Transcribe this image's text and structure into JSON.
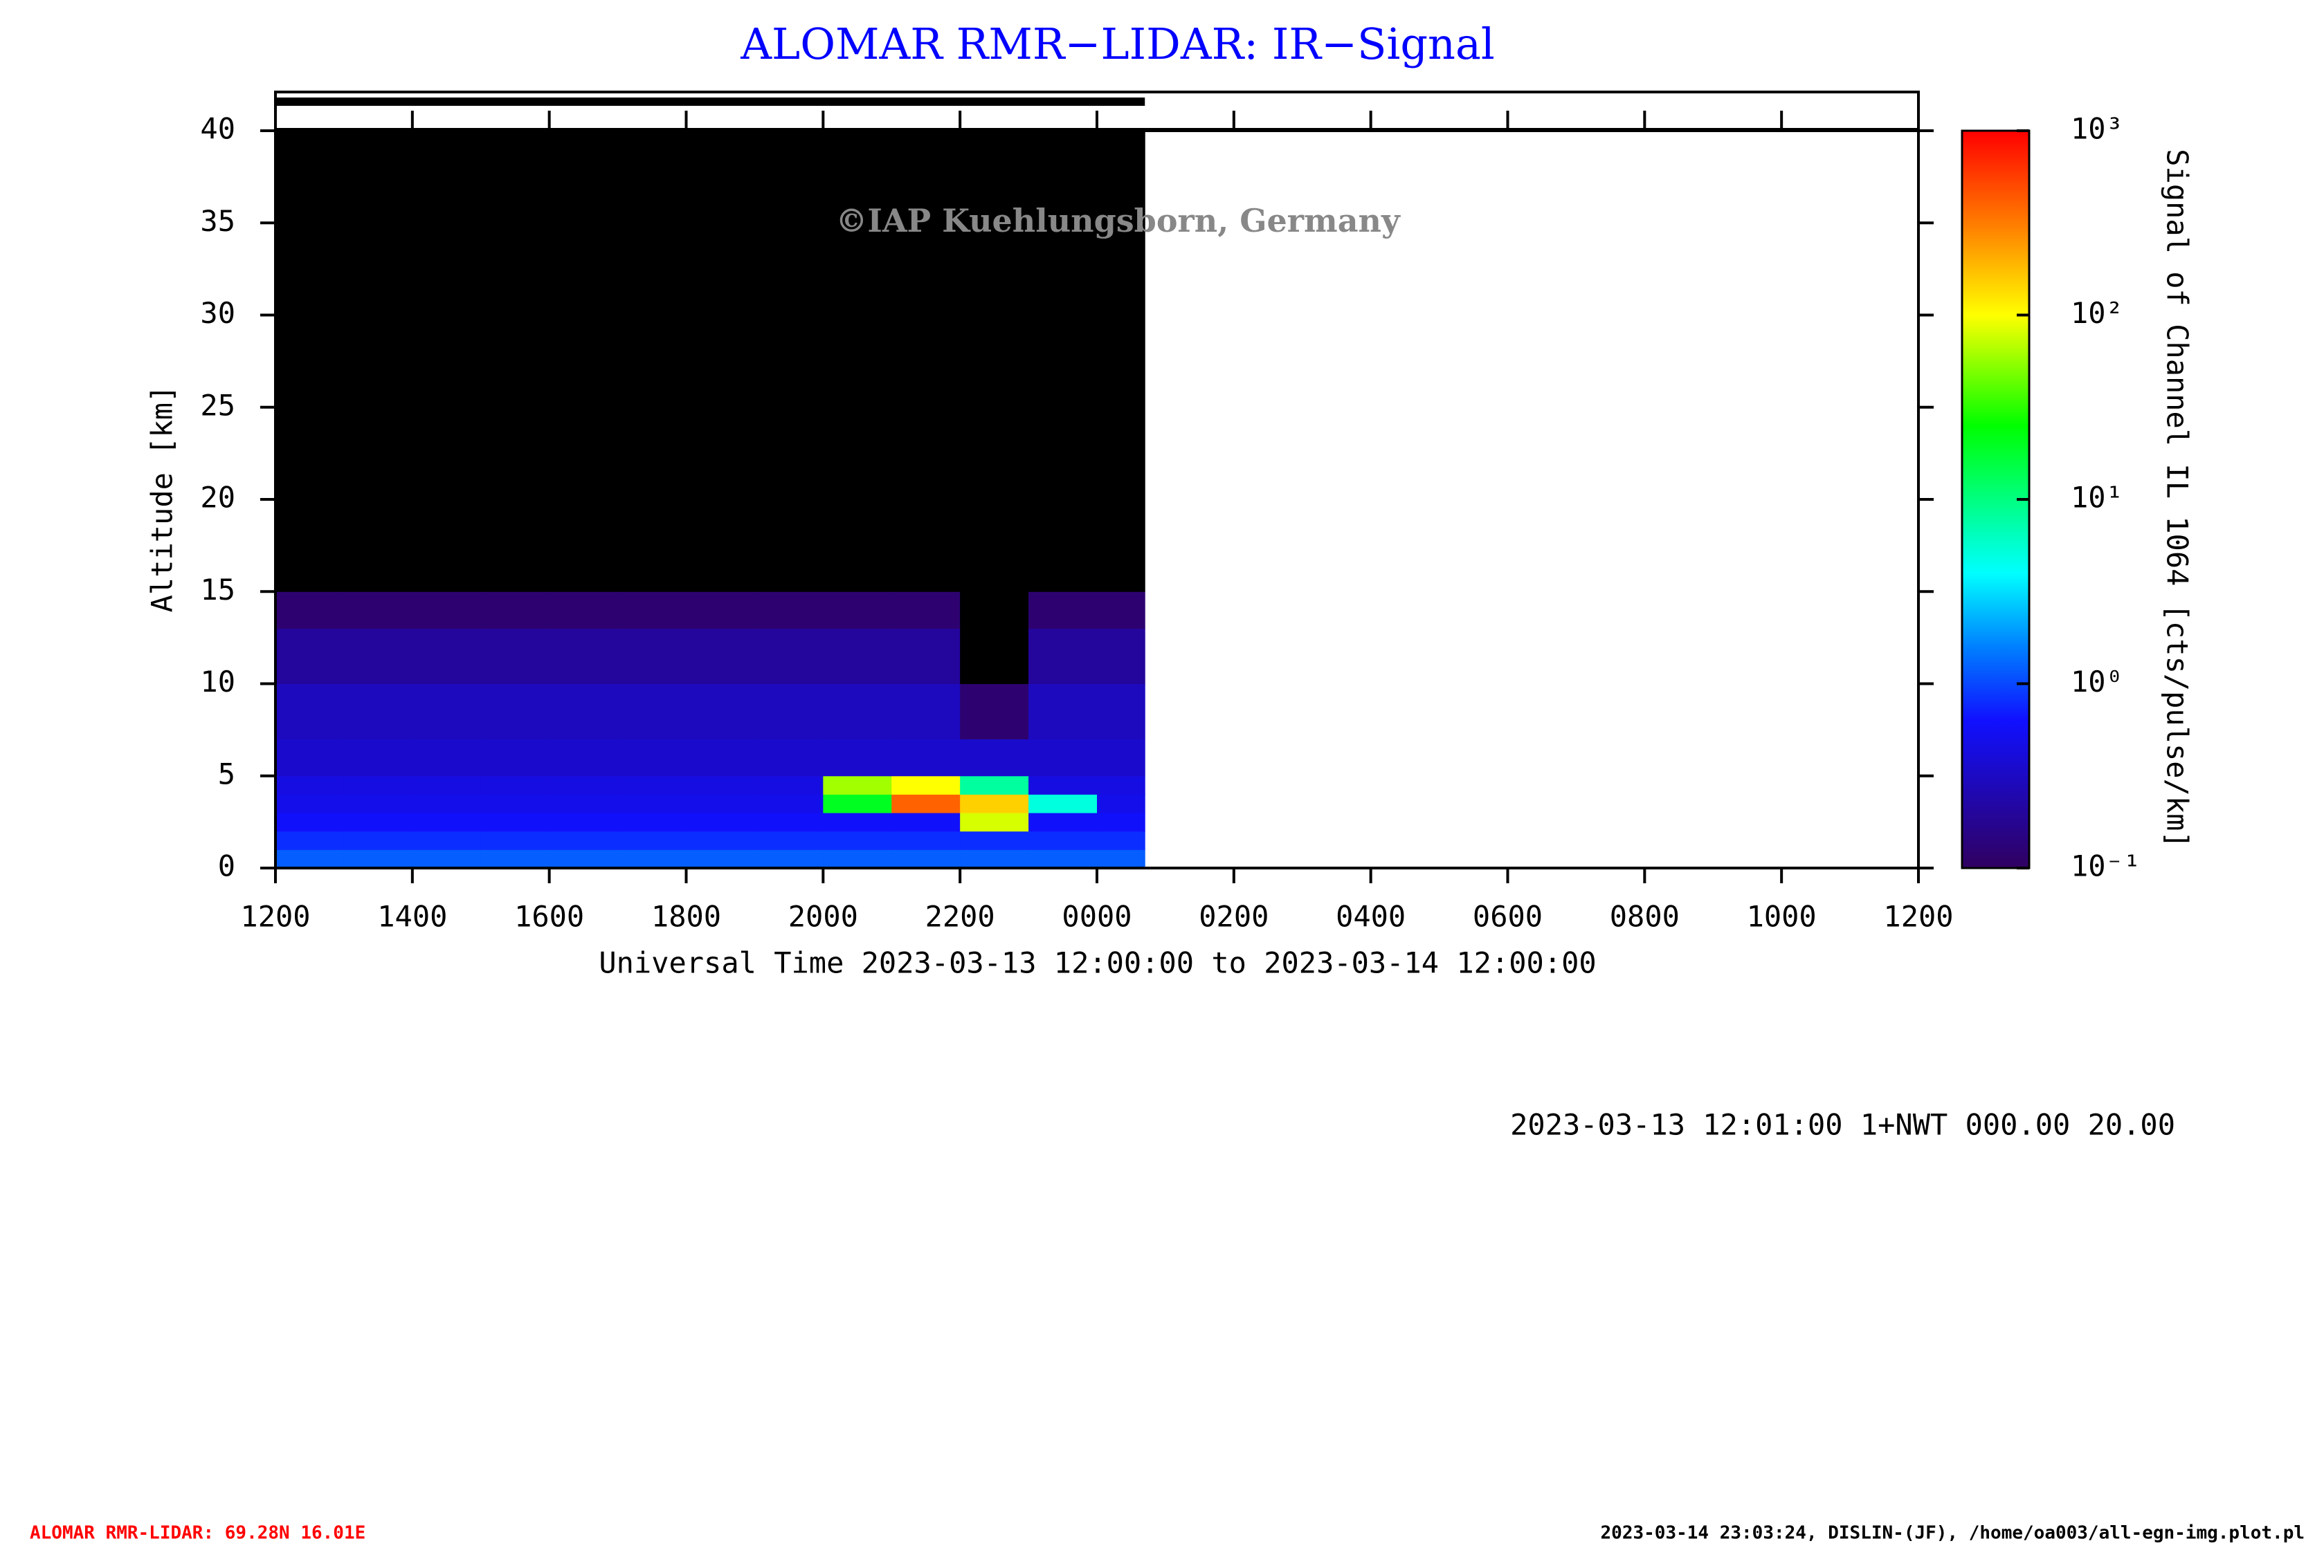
{
  "chart_data": {
    "type": "heatmap",
    "title": "ALOMAR RMR−LIDAR: IR−Signal",
    "x_label": "Universal Time 2023-03-13 12:00:00 to 2023-03-14 12:00:00",
    "y_label": "Altitude [km]",
    "colorbar_label": "Signal of Channel IL 1064 [cts/pulse/km]",
    "watermark": "©IAP Kuehlungsborn, Germany",
    "info": "2023-03-13 12:01:00 1+NWT 000.00 20.00",
    "footer_left": "ALOMAR RMR-LIDAR: 69.28N 16.01E",
    "footer_right": "2023-03-14 23:03:24, DISLIN-(JF), /home/oa003/all-egn-img.plot.pl",
    "xlim": [
      0,
      24
    ],
    "xticks": [
      {
        "value": 0,
        "label": "1200"
      },
      {
        "value": 2,
        "label": "1400"
      },
      {
        "value": 4,
        "label": "1600"
      },
      {
        "value": 6,
        "label": "1800"
      },
      {
        "value": 8,
        "label": "2000"
      },
      {
        "value": 10,
        "label": "2200"
      },
      {
        "value": 12,
        "label": "0000"
      },
      {
        "value": 14,
        "label": "0200"
      },
      {
        "value": 16,
        "label": "0400"
      },
      {
        "value": 18,
        "label": "0600"
      },
      {
        "value": 20,
        "label": "0800"
      },
      {
        "value": 22,
        "label": "1000"
      },
      {
        "value": 24,
        "label": "1200"
      }
    ],
    "ylim": [
      0,
      40
    ],
    "yticks": [
      0,
      5,
      10,
      15,
      20,
      25,
      30,
      35,
      40
    ],
    "xbins": [
      0,
      1,
      2,
      3,
      4,
      5,
      6,
      7,
      8,
      9,
      10,
      11,
      12,
      12.7
    ],
    "ybins": [
      0,
      1,
      2,
      3,
      4,
      5,
      7,
      10,
      13,
      15,
      40
    ],
    "z": [
      [
        1.2,
        1.2,
        1.2,
        1.2,
        1.2,
        1.2,
        1.2,
        1.2,
        1.2,
        1.2,
        1.2,
        1.2,
        1.2
      ],
      [
        0.8,
        0.8,
        0.8,
        0.8,
        0.8,
        0.8,
        0.8,
        0.8,
        0.8,
        0.8,
        0.8,
        0.8,
        0.8
      ],
      [
        0.6,
        0.6,
        0.6,
        0.6,
        0.6,
        0.6,
        0.6,
        0.6,
        0.6,
        0.6,
        80,
        0.6,
        0.6
      ],
      [
        0.5,
        0.5,
        0.5,
        0.5,
        0.5,
        0.5,
        0.5,
        0.5,
        20,
        400,
        150,
        5,
        0.5
      ],
      [
        0.45,
        0.45,
        0.45,
        0.45,
        0.45,
        0.45,
        0.45,
        0.45,
        60,
        100,
        8,
        0.45,
        0.45
      ],
      [
        0.35,
        0.35,
        0.35,
        0.35,
        0.35,
        0.35,
        0.35,
        0.35,
        0.35,
        0.35,
        0.35,
        0.35,
        0.35
      ],
      [
        0.3,
        0.3,
        0.3,
        0.3,
        0.3,
        0.3,
        0.3,
        0.3,
        0.3,
        0.3,
        0.12,
        0.3,
        0.3
      ],
      [
        0.2,
        0.2,
        0.2,
        0.2,
        0.2,
        0.2,
        0.2,
        0.2,
        0.2,
        0.2,
        0.05,
        0.2,
        0.2
      ],
      [
        0.12,
        0.12,
        0.12,
        0.12,
        0.12,
        0.12,
        0.12,
        0.12,
        0.12,
        0.12,
        0.05,
        0.12,
        0.12
      ],
      [
        0.05,
        0.05,
        0.05,
        0.05,
        0.05,
        0.05,
        0.05,
        0.05,
        0.05,
        0.05,
        0.05,
        0.05,
        0.05
      ]
    ],
    "clim": [
      0.1,
      1000
    ],
    "color_scale": "log",
    "under_color": "#000000",
    "cticks": [
      {
        "value": 0.1,
        "label": "10⁻¹"
      },
      {
        "value": 1,
        "label": "10⁰"
      },
      {
        "value": 10,
        "label": "10¹"
      },
      {
        "value": 100,
        "label": "10²"
      },
      {
        "value": 1000,
        "label": "10³"
      }
    ]
  }
}
